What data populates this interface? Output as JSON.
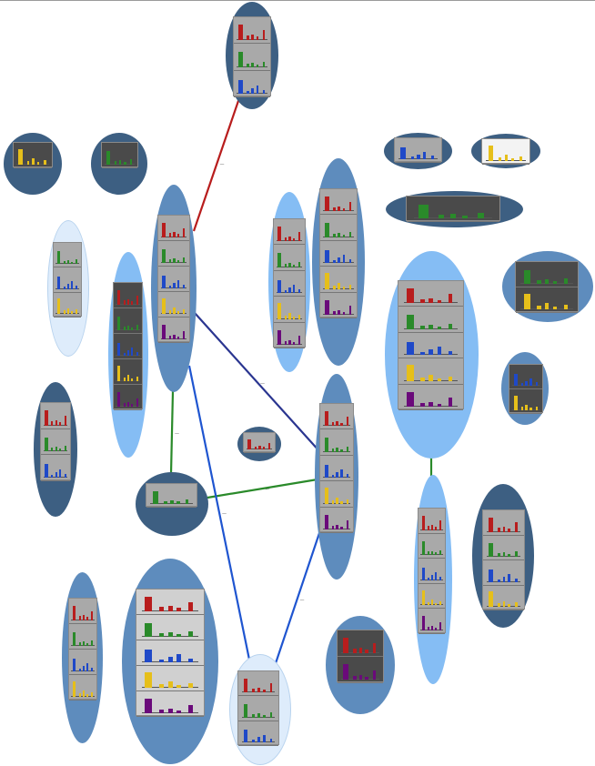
{
  "colors": {
    "node_dark": "#3d5f82",
    "node_mid": "#5e8cbd",
    "node_light": "#85bdf4",
    "node_pale": "#deecfb",
    "panel_gray": "#a9a9a9",
    "panel_dark": "#4a4a4a",
    "panel_light": "#d0d0d0",
    "panel_white": "#f3f3f3",
    "series_red": "#b81d1d",
    "series_green": "#2a8a2a",
    "series_blue": "#1f49c8",
    "series_yellow": "#e6bf1a",
    "series_purple": "#6a0a7a",
    "edge_red": "#b81d1d",
    "edge_navy": "#2a3590",
    "edge_green": "#2a8a2a",
    "edge_blue": "#1f55d0"
  },
  "edges": [
    {
      "from": "n_top",
      "to": "n_hub_left",
      "color": "edge_red",
      "label": "—"
    },
    {
      "from": "n_hub_left",
      "to": "n_hub_center",
      "color": "edge_navy",
      "label": "—"
    },
    {
      "from": "n_hub_left",
      "to": "n_green_small",
      "color": "edge_green",
      "label": "—"
    },
    {
      "from": "n_green_small",
      "to": "n_hub_center",
      "color": "edge_green",
      "label": "—"
    },
    {
      "from": "n_hub_left",
      "to": "n_bottom",
      "color": "edge_blue",
      "label": "—"
    },
    {
      "from": "n_hub_center",
      "to": "n_bottom",
      "color": "edge_blue",
      "label": "—"
    },
    {
      "from": "n_right_big",
      "to": "n_right_tall",
      "color": "edge_green",
      "label": ""
    }
  ],
  "nodes": [
    {
      "id": "n_top",
      "fill": "node_dark",
      "charts": [
        "red",
        "green",
        "blue"
      ],
      "panel": "panel_gray"
    },
    {
      "id": "n_tl1",
      "fill": "node_dark",
      "charts": [
        "yellow"
      ],
      "panel": "panel_dark"
    },
    {
      "id": "n_tl2",
      "fill": "node_dark",
      "charts": [
        "green"
      ],
      "panel": "panel_dark"
    },
    {
      "id": "n_pale_left",
      "fill": "node_pale",
      "charts": [
        "green",
        "blue",
        "yellow"
      ],
      "panel": "panel_gray"
    },
    {
      "id": "n_light_left",
      "fill": "node_light",
      "charts": [
        "red",
        "green",
        "blue",
        "yellow",
        "purple"
      ],
      "panel": "panel_dark"
    },
    {
      "id": "n_hub_left",
      "fill": "node_mid",
      "charts": [
        "red",
        "green",
        "blue",
        "yellow",
        "purple"
      ],
      "panel": "panel_gray"
    },
    {
      "id": "n_dark_left",
      "fill": "node_dark",
      "charts": [
        "red",
        "green",
        "blue"
      ],
      "panel": "panel_gray"
    },
    {
      "id": "n_mid_light",
      "fill": "node_light",
      "charts": [
        "red",
        "green",
        "blue",
        "yellow",
        "purple"
      ],
      "panel": "panel_gray"
    },
    {
      "id": "n_center_tall",
      "fill": "node_mid",
      "charts": [
        "red",
        "green",
        "blue",
        "yellow",
        "purple"
      ],
      "panel": "panel_gray"
    },
    {
      "id": "n_hub_center",
      "fill": "node_mid",
      "charts": [
        "red",
        "green",
        "blue",
        "yellow",
        "purple"
      ],
      "panel": "panel_gray"
    },
    {
      "id": "n_tiny",
      "fill": "node_dark",
      "charts": [
        "red"
      ],
      "panel": "panel_gray"
    },
    {
      "id": "n_green_small",
      "fill": "node_dark",
      "charts": [
        "green"
      ],
      "panel": "panel_gray"
    },
    {
      "id": "n_tr1",
      "fill": "node_dark",
      "charts": [
        "blue"
      ],
      "panel": "panel_gray"
    },
    {
      "id": "n_tr2",
      "fill": "node_dark",
      "charts": [
        "yellow"
      ],
      "panel": "panel_white"
    },
    {
      "id": "n_tr_wide",
      "fill": "node_dark",
      "charts": [
        "green"
      ],
      "panel": "panel_dark"
    },
    {
      "id": "n_right_big",
      "fill": "node_light",
      "charts": [
        "red",
        "green",
        "blue",
        "yellow",
        "purple"
      ],
      "panel": "panel_gray"
    },
    {
      "id": "n_far_right1",
      "fill": "node_mid",
      "charts": [
        "green",
        "yellow"
      ],
      "panel": "panel_dark"
    },
    {
      "id": "n_far_right2",
      "fill": "node_mid",
      "charts": [
        "blue",
        "yellow"
      ],
      "panel": "panel_dark"
    },
    {
      "id": "n_right_tall",
      "fill": "node_light",
      "charts": [
        "red",
        "green",
        "blue",
        "yellow",
        "purple"
      ],
      "panel": "panel_gray"
    },
    {
      "id": "n_right_dark",
      "fill": "node_dark",
      "charts": [
        "red",
        "green",
        "blue",
        "yellow"
      ],
      "panel": "panel_gray"
    },
    {
      "id": "n_bl1",
      "fill": "node_mid",
      "charts": [
        "red",
        "green",
        "blue",
        "yellow"
      ],
      "panel": "panel_gray"
    },
    {
      "id": "n_bl2",
      "fill": "node_mid",
      "charts": [
        "red",
        "green",
        "blue",
        "yellow",
        "purple"
      ],
      "panel": "panel_light"
    },
    {
      "id": "n_bottom",
      "fill": "node_pale",
      "charts": [
        "red",
        "green",
        "blue"
      ],
      "panel": "panel_gray"
    },
    {
      "id": "n_br",
      "fill": "node_mid",
      "charts": [
        "red",
        "purple"
      ],
      "panel": "panel_dark"
    }
  ]
}
